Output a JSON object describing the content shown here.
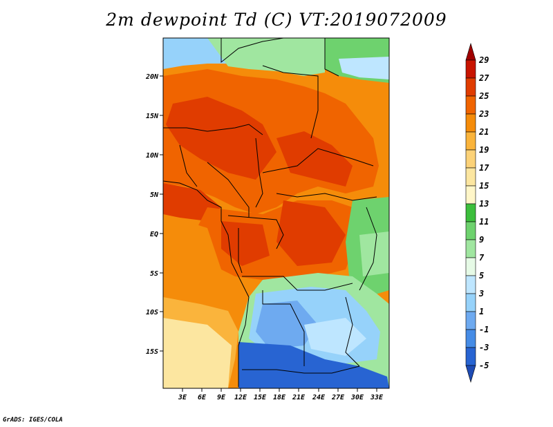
{
  "title": "2m dewpoint Td (C) VT:2019072009",
  "credit": "GrADS: IGES/COLA",
  "map": {
    "lat_ticks": [
      "20N",
      "15N",
      "10N",
      "5N",
      "EQ",
      "5S",
      "10S",
      "15S"
    ],
    "lon_ticks": [
      "3E",
      "6E",
      "9E",
      "12E",
      "15E",
      "18E",
      "21E",
      "24E",
      "27E",
      "30E",
      "33E"
    ]
  },
  "colorbar": {
    "levels": [
      "29",
      "27",
      "25",
      "23",
      "21",
      "19",
      "17",
      "15",
      "13",
      "11",
      "9",
      "7",
      "5",
      "3",
      "1",
      "-1",
      "-3",
      "-5"
    ],
    "colors": [
      "#a00000",
      "#c81400",
      "#e03c00",
      "#f06400",
      "#f58c0a",
      "#fab43c",
      "#fcd278",
      "#fce6a0",
      "#fff6c8",
      "#3cbe3c",
      "#6ed26e",
      "#a0e6a0",
      "#e6fae6",
      "#bee6ff",
      "#96d2fa",
      "#6eaaf0",
      "#468ce6",
      "#2864d2",
      "#1e4bb4"
    ],
    "arrow_top_color": "#a00000",
    "arrow_bottom_color": "#1e4bb4"
  },
  "palette": {
    "very_humid": "#e03c00",
    "humid": "#f06400",
    "warm": "#f58c0a",
    "mid": "#fab43c",
    "dry_yellow": "#fce6a0",
    "green": "#6ed26e",
    "light_green": "#a0e6a0",
    "light_blue": "#96d2fa",
    "blue": "#6eaaf0",
    "deep_blue": "#2864d2"
  }
}
